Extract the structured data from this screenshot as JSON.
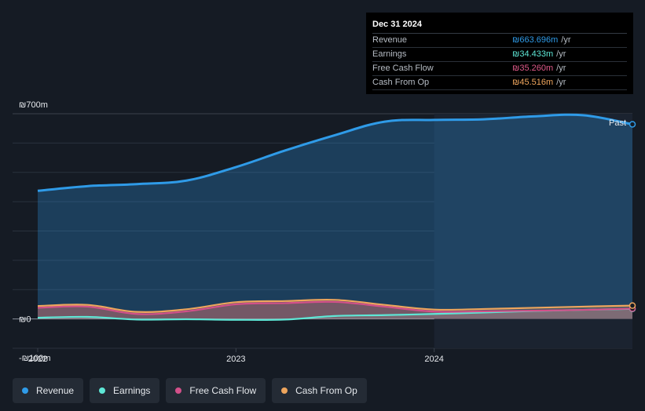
{
  "tooltip": {
    "date": "Dec 31 2024",
    "rows": [
      {
        "label": "Revenue",
        "value": "₪663.696m",
        "unit": "/yr",
        "color": "#2f9be8"
      },
      {
        "label": "Earnings",
        "value": "₪34.433m",
        "unit": "/yr",
        "color": "#5ee7d6"
      },
      {
        "label": "Free Cash Flow",
        "value": "₪35.260m",
        "unit": "/yr",
        "color": "#e05a8a"
      },
      {
        "label": "Cash From Op",
        "value": "₪45.516m",
        "unit": "/yr",
        "color": "#eea55d"
      }
    ]
  },
  "past_label": "Past",
  "legend": [
    {
      "label": "Revenue",
      "color": "#2f9be8"
    },
    {
      "label": "Earnings",
      "color": "#5ee7d6"
    },
    {
      "label": "Free Cash Flow",
      "color": "#d3508a"
    },
    {
      "label": "Cash From Op",
      "color": "#eea55d"
    }
  ],
  "chart_data": {
    "type": "area",
    "title": "",
    "xlabel": "",
    "ylabel": "",
    "currency": "₪",
    "ylim": [
      -100,
      700
    ],
    "y_tick_labels": [
      {
        "value": 700,
        "label": "₪700m"
      },
      {
        "value": 0,
        "label": "₪0"
      },
      {
        "value": -100,
        "label": "-₪100m"
      }
    ],
    "x_tick_labels": [
      {
        "value": 2022.0,
        "label": "2022"
      },
      {
        "value": 2023.0,
        "label": "2023"
      },
      {
        "value": 2024.0,
        "label": "2024"
      }
    ],
    "xlim": [
      2021.87,
      2025.0
    ],
    "highlight_from": 2024.0,
    "series": [
      {
        "name": "Revenue",
        "color": "#2f9be8",
        "x": [
          2022.0,
          2022.25,
          2022.5,
          2022.75,
          2023.0,
          2023.25,
          2023.5,
          2023.75,
          2024.0,
          2024.25,
          2024.5,
          2024.75,
          2025.0
        ],
        "values": [
          437,
          453,
          460,
          472,
          518,
          575,
          627,
          673,
          679,
          681,
          691,
          695,
          664
        ]
      },
      {
        "name": "Earnings",
        "color": "#5ee7d6",
        "x": [
          2022.0,
          2022.25,
          2022.5,
          2022.75,
          2023.0,
          2023.25,
          2023.5,
          2023.75,
          2024.0,
          2024.25,
          2024.5,
          2024.75,
          2025.0
        ],
        "values": [
          4,
          7,
          -2,
          -1,
          -3,
          -2,
          10,
          13,
          17,
          22,
          27,
          31,
          34.4
        ]
      },
      {
        "name": "Free Cash Flow",
        "color": "#d3508a",
        "x": [
          2022.0,
          2022.25,
          2022.5,
          2022.75,
          2023.0,
          2023.25,
          2023.5,
          2023.75,
          2024.0,
          2024.25,
          2024.5,
          2024.75,
          2025.0
        ],
        "values": [
          38,
          42,
          17,
          26,
          50,
          54,
          58,
          42,
          25,
          26,
          28,
          31,
          35.3
        ]
      },
      {
        "name": "Cash From Op",
        "color": "#eea55d",
        "x": [
          2022.0,
          2022.25,
          2022.5,
          2022.75,
          2023.0,
          2023.25,
          2023.5,
          2023.75,
          2024.0,
          2024.25,
          2024.5,
          2024.75,
          2025.0
        ],
        "values": [
          44,
          48,
          24,
          33,
          57,
          61,
          65,
          48,
          32,
          34,
          38,
          42,
          45.5
        ]
      }
    ]
  }
}
